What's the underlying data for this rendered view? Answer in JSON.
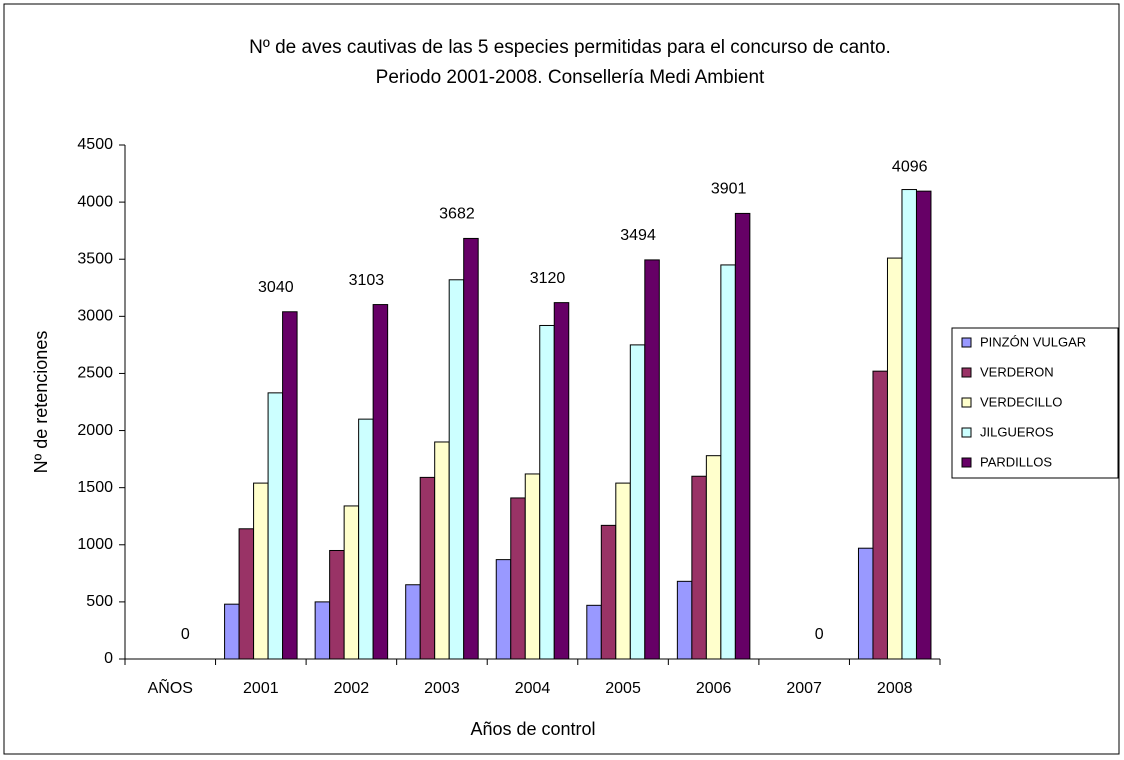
{
  "chart_data": {
    "type": "bar",
    "title": [
      "Nº de aves cautivas de las 5 especies permitidas para el concurso de canto.",
      "Periodo 2001-2008. Consellería Medi Ambient"
    ],
    "x_label": "Años de control",
    "y_label": "Nº de retenciones",
    "categories": [
      "AÑOS",
      "2001",
      "2002",
      "2003",
      "2004",
      "2005",
      "2006",
      "2007",
      "2008"
    ],
    "series": [
      {
        "name": "PINZÓN VULGAR",
        "color": "#9999ff",
        "values": [
          0,
          480,
          500,
          650,
          870,
          470,
          680,
          0,
          970
        ]
      },
      {
        "name": "VERDERON",
        "color": "#993366",
        "values": [
          0,
          1140,
          950,
          1590,
          1410,
          1170,
          1600,
          0,
          2520
        ]
      },
      {
        "name": "VERDECILLO",
        "color": "#ffffcc",
        "values": [
          0,
          1540,
          1340,
          1900,
          1620,
          1540,
          1780,
          0,
          3510
        ]
      },
      {
        "name": "JILGUEROS",
        "color": "#ccffff",
        "values": [
          0,
          2330,
          2100,
          3320,
          2920,
          2750,
          3450,
          0,
          4110
        ]
      },
      {
        "name": "PARDILLOS",
        "color": "#660066",
        "values": [
          0,
          3040,
          3103,
          3682,
          3120,
          3494,
          3901,
          0,
          4096
        ]
      }
    ],
    "labeled_series": 4,
    "ylim": [
      0,
      4500
    ],
    "yticks": [
      0,
      500,
      1000,
      1500,
      2000,
      2500,
      3000,
      3500,
      4000,
      4500
    ],
    "grid": false,
    "legend": "right"
  }
}
